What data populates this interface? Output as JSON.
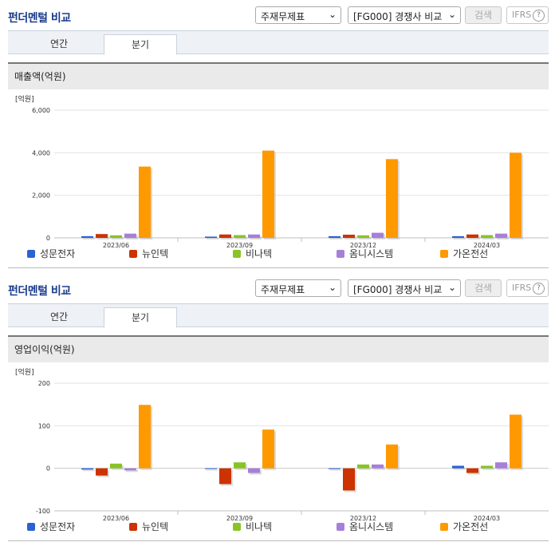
{
  "sections": [
    {
      "title": "펀더멘털 비교",
      "select1": "주재무제표",
      "select2": "[FG000] 경쟁사 비교",
      "search_label": "검색",
      "ifrs_label": "IFRS",
      "ifrs_help": "?",
      "tabs": [
        "연간",
        "분기"
      ],
      "active_tab": "분기",
      "panel_title": "매출액(억원)",
      "unit": "[억원]",
      "legend": [
        "성문전자",
        "뉴인텍",
        "비나텍",
        "옴니시스템",
        "가온전선"
      ]
    },
    {
      "title": "펀더멘털 비교",
      "select1": "주재무제표",
      "select2": "[FG000] 경쟁사 비교",
      "search_label": "검색",
      "ifrs_label": "IFRS",
      "ifrs_help": "?",
      "tabs": [
        "연간",
        "분기"
      ],
      "active_tab": "분기",
      "panel_title": "영업이익(억원)",
      "unit": "[억원]",
      "legend": [
        "성문전자",
        "뉴인텍",
        "비나텍",
        "옴니시스템",
        "가온전선"
      ]
    }
  ],
  "colors": [
    "#2a62d6",
    "#cc3300",
    "#88c425",
    "#a77fd9",
    "#ff9900"
  ],
  "chart_data": [
    {
      "type": "bar",
      "categories": [
        "2023/06",
        "2023/09",
        "2023/12",
        "2024/03"
      ],
      "ylim": [
        0,
        6000
      ],
      "yticks": [
        0,
        2000,
        4000,
        6000
      ],
      "ytick_labels": [
        "0",
        "2,000",
        "4,000",
        "6,000"
      ],
      "series": [
        {
          "name": "성문전자",
          "values": [
            80,
            60,
            80,
            80
          ]
        },
        {
          "name": "뉴인텍",
          "values": [
            180,
            160,
            150,
            160
          ]
        },
        {
          "name": "비나텍",
          "values": [
            120,
            130,
            120,
            130
          ]
        },
        {
          "name": "옴니시스템",
          "values": [
            200,
            160,
            240,
            200
          ]
        },
        {
          "name": "가온전선",
          "values": [
            3350,
            4100,
            3700,
            4000
          ]
        }
      ]
    },
    {
      "type": "bar",
      "categories": [
        "2023/06",
        "2023/09",
        "2023/12",
        "2024/03"
      ],
      "ylim": [
        -100,
        200
      ],
      "yticks": [
        -100,
        0,
        100,
        200
      ],
      "ytick_labels": [
        "-100",
        "0",
        "100",
        "200"
      ],
      "series": [
        {
          "name": "성문전자",
          "values": [
            -3,
            0,
            -2,
            6
          ]
        },
        {
          "name": "뉴인텍",
          "values": [
            -17,
            -37,
            -52,
            -11
          ]
        },
        {
          "name": "비나텍",
          "values": [
            11,
            14,
            9,
            6
          ]
        },
        {
          "name": "옴니시스템",
          "values": [
            -5,
            -11,
            9,
            14
          ]
        },
        {
          "name": "가온전선",
          "values": [
            149,
            91,
            56,
            126
          ]
        }
      ]
    }
  ]
}
